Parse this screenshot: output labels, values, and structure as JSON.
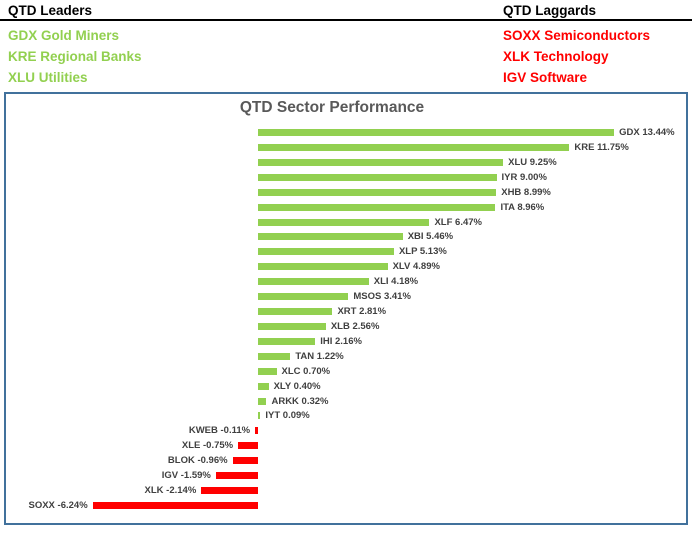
{
  "leaders": {
    "title": "QTD Leaders",
    "items": [
      "GDX Gold Miners",
      "KRE Regional Banks",
      "XLU Utilities"
    ]
  },
  "laggards": {
    "title": "QTD Laggards",
    "items": [
      "SOXX Semiconductors",
      "XLK Technology",
      "IGV Software"
    ]
  },
  "colors": {
    "positive_bar": "#92D050",
    "negative_bar": "#FF0000",
    "leaders_text": "#92D050",
    "laggards_text": "#FF0000",
    "chart_border": "#41719C",
    "chart_title_text": "#595959",
    "bar_label_text": "#404040",
    "header_rule": "#000000"
  },
  "chart_data": {
    "type": "bar",
    "orientation": "horizontal",
    "title": "QTD Sector Performance",
    "categories": [
      "GDX",
      "KRE",
      "XLU",
      "IYR",
      "XHB",
      "ITA",
      "XLF",
      "XBI",
      "XLP",
      "XLV",
      "XLI",
      "MSOS",
      "XRT",
      "XLB",
      "IHI",
      "TAN",
      "XLC",
      "XLY",
      "ARKK",
      "IYT",
      "KWEB",
      "XLE",
      "BLOK",
      "IGV",
      "XLK",
      "SOXX"
    ],
    "values": [
      13.44,
      11.75,
      9.25,
      9.0,
      8.99,
      8.96,
      6.47,
      5.46,
      5.13,
      4.89,
      4.18,
      3.41,
      2.81,
      2.56,
      2.16,
      1.22,
      0.7,
      0.4,
      0.32,
      0.09,
      -0.11,
      -0.75,
      -0.96,
      -1.59,
      -2.14,
      -6.24
    ],
    "labels": [
      "GDX 13.44%",
      "KRE 11.75%",
      "XLU 9.25%",
      "IYR 9.00%",
      "XHB 8.99%",
      "ITA 8.96%",
      "XLF 6.47%",
      "XBI 5.46%",
      "XLP 5.13%",
      "XLV 4.89%",
      "XLI 4.18%",
      "MSOS 3.41%",
      "XRT 2.81%",
      "XLB 2.56%",
      "IHI 2.16%",
      "TAN 1.22%",
      "XLC 0.70%",
      "XLY 0.40%",
      "ARKK 0.32%",
      "IYT 0.09%",
      "KWEB -0.11%",
      "XLE -0.75%",
      "BLOK -0.96%",
      "IGV -1.59%",
      "XLK -2.14%",
      "SOXX -6.24%"
    ],
    "value_format": "0.00%",
    "xlim": [
      -6.5,
      16.4
    ],
    "grid": false,
    "legend": false,
    "data_labels": "outside-end"
  }
}
